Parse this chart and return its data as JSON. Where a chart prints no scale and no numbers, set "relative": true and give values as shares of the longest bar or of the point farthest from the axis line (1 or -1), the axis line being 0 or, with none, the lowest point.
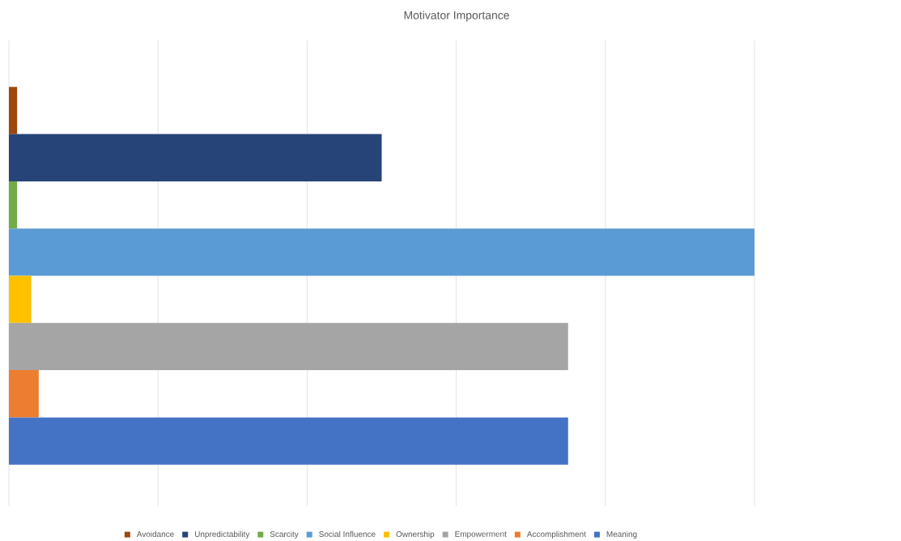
{
  "chart_data": {
    "type": "bar",
    "title": "Motivator Importance",
    "orientation": "horizontal",
    "relative": true,
    "grid": "x",
    "legend": "bottom",
    "categories": [
      null
    ],
    "series": [
      {
        "name": "Avoidance",
        "color": "#9e480e",
        "values": [
          0.011
        ]
      },
      {
        "name": "Unpredictability",
        "color": "#264478",
        "values": [
          0.5
        ]
      },
      {
        "name": "Scarcity",
        "color": "#70ad47",
        "values": [
          0.011
        ]
      },
      {
        "name": "Social Influence",
        "color": "#5b9bd5",
        "values": [
          1
        ]
      },
      {
        "name": "Ownership",
        "color": "#ffc000",
        "values": [
          0.03
        ]
      },
      {
        "name": "Empowerment",
        "color": "#a5a5a5",
        "values": [
          0.75
        ]
      },
      {
        "name": "Accomplishment",
        "color": "#ed7d31",
        "values": [
          0.04
        ]
      },
      {
        "name": "Meaning",
        "color": "#4472c4",
        "values": [
          0.75
        ]
      }
    ]
  }
}
